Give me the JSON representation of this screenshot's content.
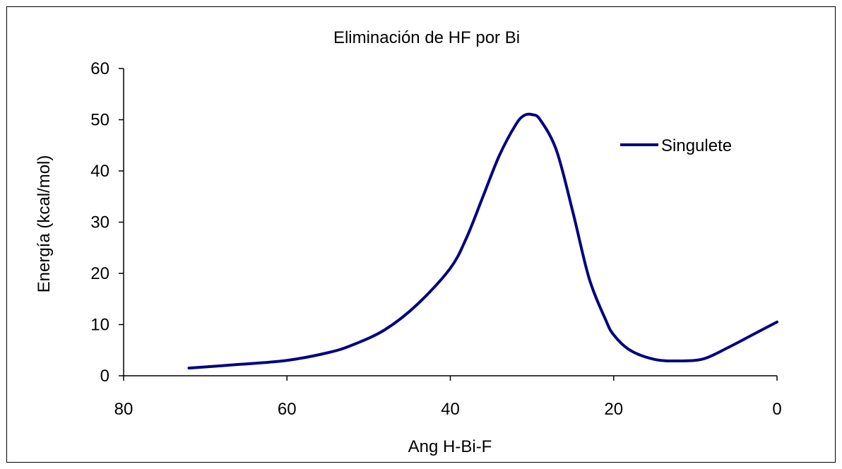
{
  "chart_data": {
    "type": "line",
    "title": "Eliminación de HF por Bi",
    "xlabel": "Ang H-Bi-F",
    "ylabel": "Energía (kcal/mol)",
    "xlim": [
      80,
      0
    ],
    "ylim": [
      0,
      60
    ],
    "x_reversed": true,
    "xticks": [
      80,
      60,
      40,
      20,
      0
    ],
    "yticks": [
      0,
      10,
      20,
      30,
      40,
      50,
      60
    ],
    "grid": false,
    "legend_position": "right",
    "series": [
      {
        "name": "Singulete",
        "color": "#000080",
        "x": [
          72,
          66,
          60,
          55,
          52,
          48,
          44,
          40,
          38,
          36,
          34,
          32,
          31,
          30,
          29,
          27,
          25,
          23,
          21,
          20,
          18,
          15,
          12,
          9,
          6,
          3,
          0
        ],
        "y": [
          1.5,
          2.2,
          3.0,
          4.5,
          6.0,
          9.0,
          14.0,
          21.0,
          27.0,
          35.0,
          43.0,
          49.0,
          50.8,
          51.0,
          50.0,
          44.0,
          32.0,
          19.0,
          11.0,
          8.0,
          5.0,
          3.2,
          2.9,
          3.3,
          5.5,
          8.0,
          10.5
        ]
      }
    ]
  }
}
